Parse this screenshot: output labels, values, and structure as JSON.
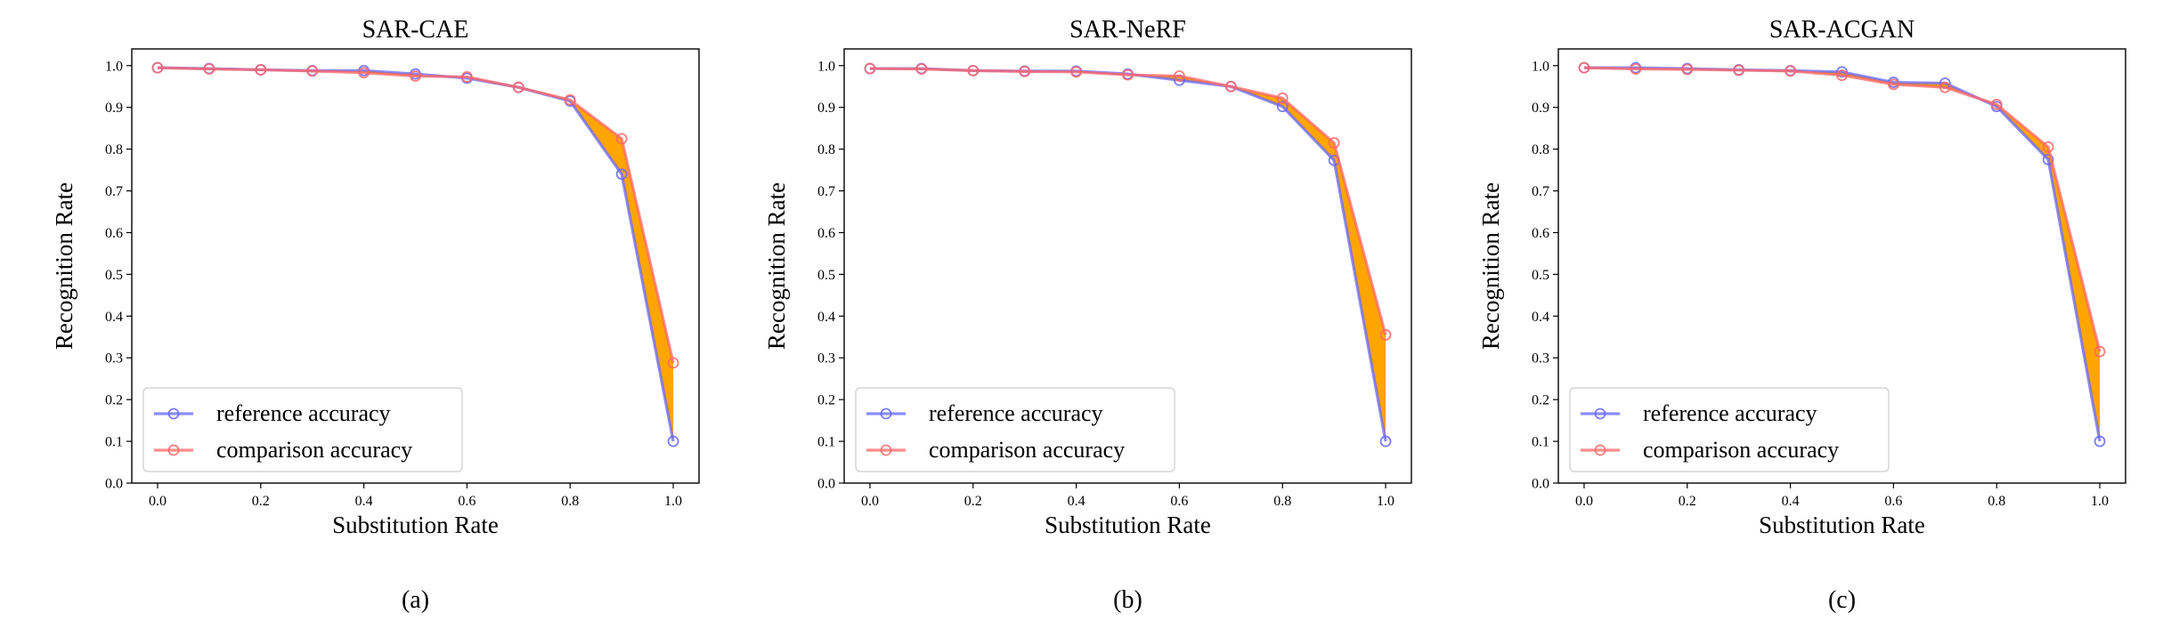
{
  "chart_data": [
    {
      "type": "line",
      "title": "SAR-CAE",
      "caption": "(a)",
      "xlabel": "Substitution Rate",
      "ylabel": "Recognition Rate",
      "xlim": [
        -0.05,
        1.05
      ],
      "ylim": [
        0.0,
        1.04
      ],
      "x": [
        0.0,
        0.1,
        0.2,
        0.3,
        0.4,
        0.5,
        0.6,
        0.7,
        0.8,
        0.9,
        1.0
      ],
      "xticks": [
        "0.0",
        "0.2",
        "0.4",
        "0.6",
        "0.8",
        "1.0"
      ],
      "yticks": [
        "0.0",
        "0.1",
        "0.2",
        "0.3",
        "0.4",
        "0.5",
        "0.6",
        "0.7",
        "0.8",
        "0.9",
        "1.0"
      ],
      "fill_between": true,
      "legend_position": "lower-left",
      "series": [
        {
          "name": "reference accuracy",
          "color": "#6666ff",
          "values": [
            0.995,
            0.993,
            0.99,
            0.988,
            0.988,
            0.98,
            0.97,
            0.948,
            0.915,
            0.74,
            0.1
          ]
        },
        {
          "name": "comparison accuracy",
          "color": "#ff6666",
          "values": [
            0.995,
            0.992,
            0.99,
            0.987,
            0.983,
            0.975,
            0.973,
            0.948,
            0.918,
            0.825,
            0.288
          ]
        }
      ]
    },
    {
      "type": "line",
      "title": "SAR-NeRF",
      "caption": "(b)",
      "xlabel": "Substitution Rate",
      "ylabel": "Recognition Rate",
      "xlim": [
        -0.05,
        1.05
      ],
      "ylim": [
        0.0,
        1.04
      ],
      "x": [
        0.0,
        0.1,
        0.2,
        0.3,
        0.4,
        0.5,
        0.6,
        0.7,
        0.8,
        0.9,
        1.0
      ],
      "xticks": [
        "0.0",
        "0.2",
        "0.4",
        "0.6",
        "0.8",
        "1.0"
      ],
      "yticks": [
        "0.0",
        "0.1",
        "0.2",
        "0.3",
        "0.4",
        "0.5",
        "0.6",
        "0.7",
        "0.8",
        "0.9",
        "1.0"
      ],
      "fill_between": true,
      "legend_position": "lower-left",
      "series": [
        {
          "name": "reference accuracy",
          "color": "#6666ff",
          "values": [
            0.993,
            0.993,
            0.988,
            0.987,
            0.987,
            0.98,
            0.965,
            0.95,
            0.902,
            0.773,
            0.1
          ]
        },
        {
          "name": "comparison accuracy",
          "color": "#ff6666",
          "values": [
            0.993,
            0.992,
            0.988,
            0.986,
            0.985,
            0.978,
            0.975,
            0.95,
            0.922,
            0.815,
            0.355
          ]
        }
      ]
    },
    {
      "type": "line",
      "title": "SAR-ACGAN",
      "caption": "(c)",
      "xlabel": "Substitution Rate",
      "ylabel": "Recognition Rate",
      "xlim": [
        -0.05,
        1.05
      ],
      "ylim": [
        0.0,
        1.04
      ],
      "x": [
        0.0,
        0.1,
        0.2,
        0.3,
        0.4,
        0.5,
        0.6,
        0.7,
        0.8,
        0.9,
        1.0
      ],
      "xticks": [
        "0.0",
        "0.2",
        "0.4",
        "0.6",
        "0.8",
        "1.0"
      ],
      "yticks": [
        "0.0",
        "0.1",
        "0.2",
        "0.3",
        "0.4",
        "0.5",
        "0.6",
        "0.7",
        "0.8",
        "0.9",
        "1.0"
      ],
      "fill_between": true,
      "legend_position": "lower-left",
      "series": [
        {
          "name": "reference accuracy",
          "color": "#6666ff",
          "values": [
            0.995,
            0.995,
            0.993,
            0.99,
            0.988,
            0.985,
            0.96,
            0.958,
            0.902,
            0.775,
            0.1
          ]
        },
        {
          "name": "comparison accuracy",
          "color": "#ff6666",
          "values": [
            0.995,
            0.992,
            0.991,
            0.989,
            0.987,
            0.977,
            0.955,
            0.948,
            0.907,
            0.805,
            0.315
          ]
        }
      ]
    }
  ],
  "fill_color": "#ffa500"
}
